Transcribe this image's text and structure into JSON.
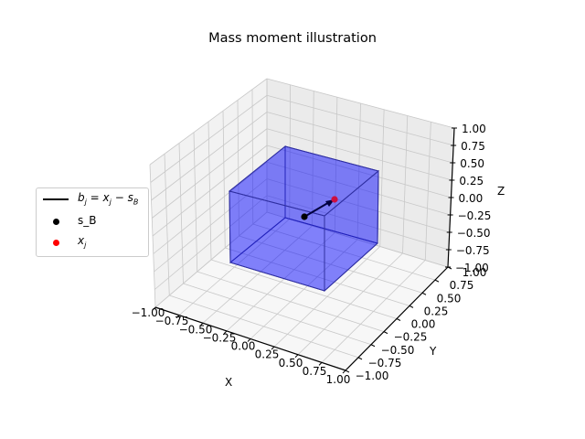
{
  "title": "Mass moment illustration",
  "chart_data": {
    "type": "3d-scatter",
    "title": "Mass moment illustration",
    "xlabel": "X",
    "ylabel": "Y",
    "zlabel": "Z",
    "xlim": [
      -1.0,
      1.0
    ],
    "ylim": [
      -1.0,
      1.0
    ],
    "zlim": [
      -1.0,
      1.0
    ],
    "xticks": [
      "−1.00",
      "−0.75",
      "−0.50",
      "−0.25",
      "0.00",
      "0.25",
      "0.50",
      "0.75",
      "1.00"
    ],
    "yticks": [
      "−1.00",
      "−0.75",
      "−0.50",
      "−0.25",
      "0.00",
      "0.25",
      "0.50",
      "0.75",
      "1.00"
    ],
    "zticks": [
      "1.00",
      "0.75",
      "0.50",
      "0.25",
      "0.00",
      "−0.25",
      "−0.50",
      "−0.75",
      "−1.00"
    ],
    "grid": true,
    "legend_position": "center left (outside)",
    "series": [
      {
        "name": "b_j = x_j − s_B",
        "kind": "arrow",
        "from": [
          0.0,
          0.0,
          0.0
        ],
        "to": [
          0.3,
          0.3,
          0.1
        ],
        "color": "#000080"
      },
      {
        "name": "s_B",
        "kind": "scatter",
        "points": [
          [
            0.0,
            0.0,
            0.0
          ]
        ],
        "color": "#000000"
      },
      {
        "name": "x_j",
        "kind": "scatter",
        "points": [
          [
            0.3,
            0.3,
            0.1
          ]
        ],
        "color": "#ff0000"
      }
    ],
    "box": {
      "description": "translucent blue rectangular body",
      "x": [
        -0.5,
        0.5
      ],
      "y": [
        -0.5,
        0.5
      ],
      "z": [
        -0.5,
        0.5
      ],
      "facecolor": "#0000ff",
      "alpha": 0.3,
      "edgecolor": "#000080"
    }
  },
  "legend": {
    "items": [
      {
        "label_main": "b",
        "label_sub": "j",
        "label_rest": " = x",
        "label_sub2": "j",
        "label_rest2": " − s",
        "label_sub3": "B"
      },
      {
        "label": "s_B"
      },
      {
        "label_main": "x",
        "label_sub": "j"
      }
    ]
  },
  "axes": {
    "x_label": "X",
    "y_label": "Y",
    "z_label": "Z"
  }
}
